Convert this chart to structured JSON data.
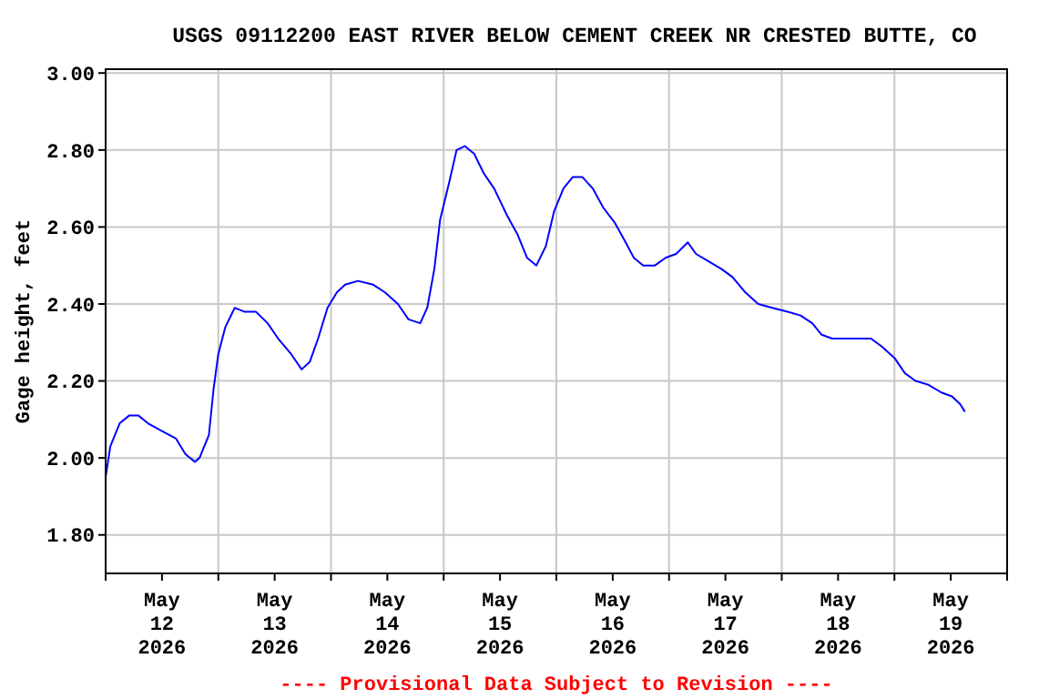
{
  "chart_data": {
    "type": "line",
    "title": "USGS 09112200 EAST RIVER BELOW CEMENT CREEK NR CRESTED BUTTE, CO",
    "ylabel": "Gage height, feet",
    "annotations": [
      "---- Provisional Data Subject to Revision ----"
    ],
    "xlim": [
      "2026-05-12T00:00",
      "2026-05-20T00:00"
    ],
    "xticks": [
      {
        "value": "2026-05-12T00:00",
        "label": null
      },
      {
        "value": "2026-05-12T12:00",
        "label": "May\n12\n2026"
      },
      {
        "value": "2026-05-13T00:00",
        "label": null
      },
      {
        "value": "2026-05-13T12:00",
        "label": "May\n13\n2026"
      },
      {
        "value": "2026-05-14T00:00",
        "label": null
      },
      {
        "value": "2026-05-14T12:00",
        "label": "May\n14\n2026"
      },
      {
        "value": "2026-05-15T00:00",
        "label": null
      },
      {
        "value": "2026-05-15T12:00",
        "label": "May\n15\n2026"
      },
      {
        "value": "2026-05-16T00:00",
        "label": null
      },
      {
        "value": "2026-05-16T12:00",
        "label": "May\n16\n2026"
      },
      {
        "value": "2026-05-17T00:00",
        "label": null
      },
      {
        "value": "2026-05-17T12:00",
        "label": "May\n17\n2026"
      },
      {
        "value": "2026-05-18T00:00",
        "label": null
      },
      {
        "value": "2026-05-18T12:00",
        "label": "May\n18\n2026"
      },
      {
        "value": "2026-05-19T00:00",
        "label": null
      },
      {
        "value": "2026-05-19T12:00",
        "label": "May\n19\n2026"
      },
      {
        "value": "2026-05-20T00:00",
        "label": null
      }
    ],
    "ylim": [
      1.7,
      3.01
    ],
    "yticks": [
      {
        "value": 1.8,
        "label": "1.80"
      },
      {
        "value": 2.0,
        "label": "2.00"
      },
      {
        "value": 2.2,
        "label": "2.20"
      },
      {
        "value": 2.4,
        "label": "2.40"
      },
      {
        "value": 2.6,
        "label": "2.60"
      },
      {
        "value": 2.8,
        "label": "2.80"
      },
      {
        "value": 3.0,
        "label": "3.00"
      }
    ],
    "grid": true,
    "marker": "none",
    "line_style": "solid",
    "series": [
      {
        "color": "#0000ff",
        "x": [
          "2026-05-12T00:00",
          "2026-05-12T01:00",
          "2026-05-12T03:00",
          "2026-05-12T05:00",
          "2026-05-12T07:00",
          "2026-05-12T09:00",
          "2026-05-12T12:00",
          "2026-05-12T15:00",
          "2026-05-12T17:00",
          "2026-05-12T19:00",
          "2026-05-12T20:00",
          "2026-05-12T22:00",
          "2026-05-12T23:00",
          "2026-05-13T00:00",
          "2026-05-13T01:30",
          "2026-05-13T03:30",
          "2026-05-13T05:30",
          "2026-05-13T08:00",
          "2026-05-13T10:30",
          "2026-05-13T12:45",
          "2026-05-13T15:30",
          "2026-05-13T17:45",
          "2026-05-13T19:30",
          "2026-05-13T21:15",
          "2026-05-13T23:15",
          "2026-05-14T01:15",
          "2026-05-14T03:00",
          "2026-05-14T05:45",
          "2026-05-14T09:00",
          "2026-05-14T11:30",
          "2026-05-14T14:15",
          "2026-05-14T16:30",
          "2026-05-14T19:00",
          "2026-05-14T20:30",
          "2026-05-14T22:00",
          "2026-05-14T23:15",
          "2026-05-15T01:15",
          "2026-05-15T02:45",
          "2026-05-15T04:30",
          "2026-05-15T06:30",
          "2026-05-15T08:30",
          "2026-05-15T10:45",
          "2026-05-15T13:30",
          "2026-05-15T15:45",
          "2026-05-15T17:45",
          "2026-05-15T19:45",
          "2026-05-15T21:45",
          "2026-05-15T23:30",
          "2026-05-16T01:30",
          "2026-05-16T03:30",
          "2026-05-16T05:30",
          "2026-05-16T07:45",
          "2026-05-16T10:00",
          "2026-05-16T12:30",
          "2026-05-16T14:45",
          "2026-05-16T16:30",
          "2026-05-16T18:30",
          "2026-05-16T21:00",
          "2026-05-16T23:15",
          "2026-05-17T01:30",
          "2026-05-17T04:00",
          "2026-05-17T05:45",
          "2026-05-17T08:30",
          "2026-05-17T11:15",
          "2026-05-17T13:30",
          "2026-05-17T16:15",
          "2026-05-17T19:00",
          "2026-05-17T22:00",
          "2026-05-18T01:15",
          "2026-05-18T04:00",
          "2026-05-18T06:30",
          "2026-05-18T08:30",
          "2026-05-18T10:45",
          "2026-05-18T13:30",
          "2026-05-18T16:15",
          "2026-05-18T19:00",
          "2026-05-18T21:15",
          "2026-05-19T00:00",
          "2026-05-19T02:15",
          "2026-05-19T04:30",
          "2026-05-19T07:15",
          "2026-05-19T10:00",
          "2026-05-19T12:15",
          "2026-05-19T14:00",
          "2026-05-19T15:00"
        ],
        "values": [
          1.95,
          2.03,
          2.09,
          2.11,
          2.11,
          2.09,
          2.07,
          2.05,
          2.01,
          1.99,
          2.0,
          2.06,
          2.18,
          2.27,
          2.34,
          2.39,
          2.38,
          2.38,
          2.35,
          2.31,
          2.27,
          2.23,
          2.25,
          2.31,
          2.39,
          2.43,
          2.45,
          2.46,
          2.45,
          2.43,
          2.4,
          2.36,
          2.35,
          2.39,
          2.49,
          2.62,
          2.72,
          2.8,
          2.81,
          2.79,
          2.74,
          2.7,
          2.63,
          2.58,
          2.52,
          2.5,
          2.55,
          2.64,
          2.7,
          2.73,
          2.73,
          2.7,
          2.65,
          2.61,
          2.56,
          2.52,
          2.5,
          2.5,
          2.52,
          2.53,
          2.56,
          2.53,
          2.51,
          2.49,
          2.47,
          2.43,
          2.4,
          2.39,
          2.38,
          2.37,
          2.35,
          2.32,
          2.31,
          2.31,
          2.31,
          2.31,
          2.29,
          2.26,
          2.22,
          2.2,
          2.19,
          2.17,
          2.16,
          2.14,
          2.12
        ]
      }
    ]
  }
}
